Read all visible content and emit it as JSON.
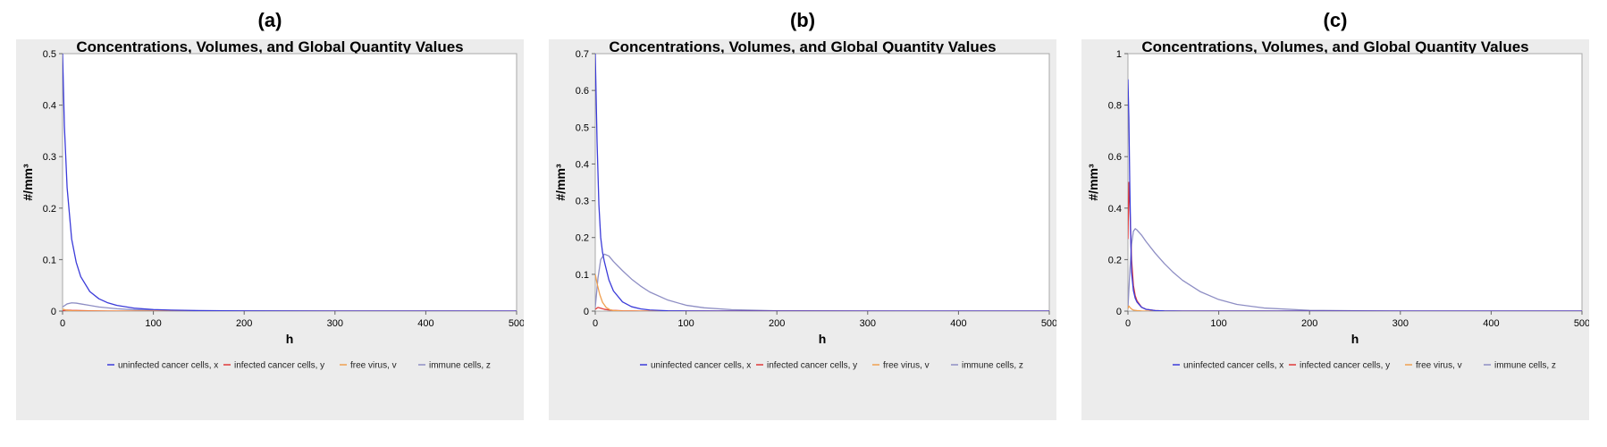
{
  "panels": [
    {
      "label": "(a)",
      "chart_data": {
        "type": "line",
        "title": "Concentrations, Volumes, and Global Quantity Values",
        "xlabel": "h",
        "ylabel": "#/mm³",
        "xlim": [
          0,
          500
        ],
        "ylim": [
          0,
          0.5
        ],
        "xticks": [
          0,
          100,
          200,
          300,
          400,
          500
        ],
        "yticks": [
          0,
          0.1,
          0.2,
          0.3,
          0.4,
          0.5
        ],
        "grid": false,
        "legend": "bottom",
        "series": [
          {
            "name": "uninfected cancer cells, x",
            "color": "#3b3bd9",
            "x": [
              0,
              2,
              5,
              10,
              15,
              20,
              30,
              40,
              50,
              60,
              80,
              100,
              120,
              150,
              200,
              300,
              400,
              500
            ],
            "y": [
              0.5,
              0.36,
              0.24,
              0.14,
              0.095,
              0.067,
              0.038,
              0.024,
              0.016,
              0.011,
              0.0055,
              0.003,
              0.0018,
              0.001,
              0.0004,
              0,
              0,
              0
            ]
          },
          {
            "name": "infected cancer cells, y",
            "color": "#e03a3a",
            "x": [
              0,
              2,
              5,
              10,
              20,
              30,
              50,
              100,
              500
            ],
            "y": [
              0.0,
              0.0015,
              0.002,
              0.0015,
              0.001,
              0.0005,
              0.0002,
              0,
              0
            ]
          },
          {
            "name": "free virus, v",
            "color": "#f0a050",
            "x": [
              0,
              2,
              5,
              10,
              20,
              50,
              500
            ],
            "y": [
              0.004,
              0.003,
              0.0015,
              0.0006,
              0.0002,
              0,
              0
            ]
          },
          {
            "name": "immune cells, z",
            "color": "#8e8ec4",
            "x": [
              0,
              5,
              10,
              15,
              20,
              30,
              40,
              60,
              80,
              100,
              150,
              500
            ],
            "y": [
              0.008,
              0.014,
              0.016,
              0.0155,
              0.014,
              0.011,
              0.008,
              0.0045,
              0.0025,
              0.0014,
              0.0004,
              0
            ]
          }
        ]
      }
    },
    {
      "label": "(b)",
      "chart_data": {
        "type": "line",
        "title": "Concentrations, Volumes, and Global Quantity Values",
        "xlabel": "h",
        "ylabel": "#/mm³",
        "xlim": [
          0,
          500
        ],
        "ylim": [
          0,
          0.7
        ],
        "xticks": [
          0,
          100,
          200,
          300,
          400,
          500
        ],
        "yticks": [
          0,
          0.1,
          0.2,
          0.3,
          0.4,
          0.5,
          0.6,
          0.7
        ],
        "grid": false,
        "legend": "bottom",
        "series": [
          {
            "name": "uninfected cancer cells, x",
            "color": "#3b3bd9",
            "x": [
              0,
              2,
              4,
              6,
              8,
              10,
              15,
              20,
              30,
              40,
              50,
              60,
              80,
              100,
              150,
              500
            ],
            "y": [
              0.7,
              0.46,
              0.29,
              0.2,
              0.16,
              0.135,
              0.085,
              0.055,
              0.025,
              0.012,
              0.006,
              0.003,
              0.001,
              0.0004,
              0,
              0
            ]
          },
          {
            "name": "infected cancer cells, y",
            "color": "#e03a3a",
            "x": [
              0,
              3,
              6,
              10,
              15,
              20,
              30,
              50,
              500
            ],
            "y": [
              0.005,
              0.01,
              0.008,
              0.005,
              0.003,
              0.002,
              0.0008,
              0.0002,
              0
            ]
          },
          {
            "name": "free virus, v",
            "color": "#f0a050",
            "x": [
              0,
              2,
              5,
              8,
              12,
              16,
              20,
              30,
              50,
              500
            ],
            "y": [
              0.1,
              0.075,
              0.045,
              0.024,
              0.01,
              0.004,
              0.0015,
              0.0003,
              0,
              0
            ]
          },
          {
            "name": "immune cells, z",
            "color": "#8e8ec4",
            "x": [
              0,
              3,
              6,
              10,
              15,
              20,
              30,
              40,
              50,
              60,
              80,
              100,
              120,
              150,
              200,
              300,
              500
            ],
            "y": [
              0.01,
              0.09,
              0.14,
              0.155,
              0.15,
              0.135,
              0.11,
              0.087,
              0.068,
              0.052,
              0.03,
              0.016,
              0.009,
              0.004,
              0.001,
              0,
              0
            ]
          }
        ]
      }
    },
    {
      "label": "(c)",
      "chart_data": {
        "type": "line",
        "title": "Concentrations, Volumes, and Global Quantity Values",
        "xlabel": "h",
        "ylabel": "#/mm³",
        "xlim": [
          0,
          500
        ],
        "ylim": [
          0,
          1
        ],
        "xticks": [
          0,
          100,
          200,
          300,
          400,
          500
        ],
        "yticks": [
          0,
          0.2,
          0.4,
          0.6,
          0.8,
          1
        ],
        "grid": false,
        "legend": "bottom",
        "series": [
          {
            "name": "uninfected cancer cells, x",
            "color": "#3b3bd9",
            "x": [
              0,
              1,
              2,
              3,
              4,
              6,
              8,
              10,
              15,
              20,
              30,
              40,
              60,
              500
            ],
            "y": [
              0.9,
              0.75,
              0.5,
              0.3,
              0.15,
              0.08,
              0.05,
              0.035,
              0.015,
              0.007,
              0.002,
              0.0006,
              0,
              0
            ]
          },
          {
            "name": "infected cancer cells, y",
            "color": "#e03a3a",
            "x": [
              0,
              1,
              2,
              3,
              4,
              6,
              8,
              10,
              15,
              20,
              30,
              40,
              60,
              500
            ],
            "y": [
              0.28,
              0.5,
              0.42,
              0.3,
              0.2,
              0.1,
              0.06,
              0.04,
              0.015,
              0.007,
              0.002,
              0.0005,
              0,
              0
            ]
          },
          {
            "name": "free virus, v",
            "color": "#f0a050",
            "x": [
              0,
              1,
              2,
              4,
              6,
              10,
              15,
              20,
              500
            ],
            "y": [
              0.01,
              0.02,
              0.015,
              0.008,
              0.004,
              0.002,
              0.0008,
              0.0002,
              0
            ]
          },
          {
            "name": "immune cells, z",
            "color": "#8e8ec4",
            "x": [
              0,
              2,
              4,
              6,
              8,
              10,
              15,
              20,
              30,
              40,
              50,
              60,
              80,
              100,
              120,
              150,
              200,
              300,
              500
            ],
            "y": [
              0.01,
              0.15,
              0.26,
              0.31,
              0.32,
              0.315,
              0.295,
              0.27,
              0.225,
              0.185,
              0.15,
              0.12,
              0.075,
              0.045,
              0.026,
              0.012,
              0.003,
              0,
              0
            ]
          }
        ]
      }
    }
  ]
}
